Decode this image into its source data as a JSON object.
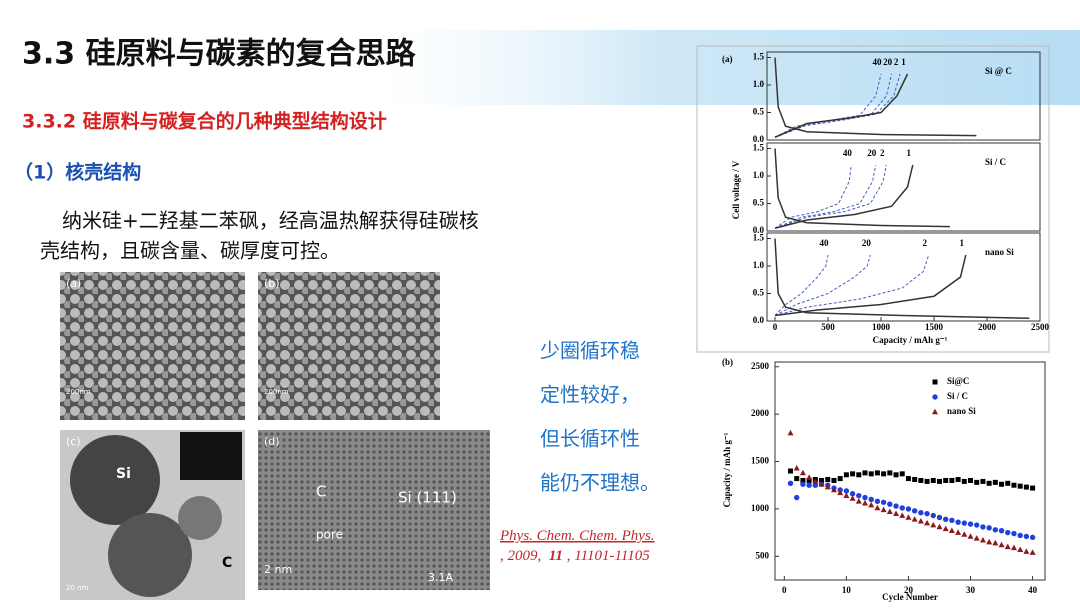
{
  "header": {
    "title": "3.3 硅原料与碳素的复合思路",
    "subtitle": "3.3.2 硅原料与碳复合的几种典型结构设计",
    "section": "（1）核壳结构"
  },
  "paragraph": [
    "纳米硅+二羟基二苯砜，经高温热解获得硅碳核",
    "壳结构，且碳含量、碳厚度可控。"
  ],
  "images": [
    {
      "label": "(a)",
      "scale": "200nm"
    },
    {
      "label": "(b)",
      "scale": "200nm"
    },
    {
      "label": "(c)",
      "core": "Si",
      "shell": "C",
      "scale": "20 nm"
    },
    {
      "label": "(d)",
      "shell": "C",
      "pore": "pore",
      "plane": "Si (111)",
      "scale": "2 nm",
      "spacing": "3.1A"
    }
  ],
  "note": [
    "少圈循环稳",
    "定性较好，",
    "但长循环性",
    "能仍不理想。"
  ],
  "citation": {
    "journal": "Phys. Chem. Chem. Phys.",
    "year": ", 2009, ",
    "volume": "11",
    "pages": ", 11101-11105"
  },
  "chart_data": [
    {
      "type": "line",
      "label": "(a)",
      "ylabel": "Cell voltage / V",
      "xlabel": "Capacity / mAh g⁻¹",
      "xlim": [
        0,
        2500
      ],
      "xticks": [
        0,
        500,
        1000,
        1500,
        2000,
        2500
      ],
      "ylim": [
        0,
        1.6
      ],
      "yticks": [
        {
          "value": 0,
          "label": "0.0"
        },
        0.5,
        {
          "value": 1,
          "label": "1.0"
        },
        1.5
      ],
      "panels": [
        {
          "name": "Si @ C",
          "series": [
            {
              "name": "40",
              "color": "#4a5fc1",
              "dashed": true,
              "x": [
                0,
                200,
                500,
                800,
                950,
                1000
              ],
              "y": [
                0.05,
                0.25,
                0.35,
                0.45,
                0.8,
                1.2
              ]
            },
            {
              "name": "20",
              "color": "#4a5fc1",
              "dashed": true,
              "x": [
                0,
                250,
                600,
                900,
                1050,
                1100
              ],
              "y": [
                0.05,
                0.25,
                0.35,
                0.45,
                0.8,
                1.2
              ]
            },
            {
              "name": "2",
              "color": "#4a5fc1",
              "dashed": true,
              "x": [
                0,
                300,
                650,
                950,
                1120,
                1180
              ],
              "y": [
                0.05,
                0.27,
                0.37,
                0.47,
                0.8,
                1.2
              ]
            },
            {
              "name": "1",
              "color": "#333333",
              "dashed": false,
              "x": [
                0,
                300,
                700,
                1000,
                1150,
                1250
              ],
              "y": [
                0.05,
                0.3,
                0.4,
                0.5,
                0.8,
                1.2
              ]
            },
            {
              "color": "#333333",
              "dashed": false,
              "x": [
                0,
                30,
                100,
                300,
                1000,
                1900
              ],
              "y": [
                1.5,
                0.6,
                0.25,
                0.15,
                0.1,
                0.08
              ]
            }
          ]
        },
        {
          "name": "Si / C",
          "series": [
            {
              "name": "40",
              "color": "#4a5fc1",
              "dashed": true,
              "x": [
                0,
                150,
                400,
                600,
                700,
                720
              ],
              "y": [
                0.05,
                0.25,
                0.35,
                0.5,
                0.9,
                1.2
              ]
            },
            {
              "name": "20",
              "color": "#4a5fc1",
              "dashed": true,
              "x": [
                0,
                250,
                550,
                800,
                920,
                950
              ],
              "y": [
                0.05,
                0.25,
                0.35,
                0.5,
                0.9,
                1.2
              ]
            },
            {
              "name": "2",
              "color": "#4a5fc1",
              "dashed": true,
              "x": [
                0,
                300,
                650,
                900,
                1020,
                1050
              ],
              "y": [
                0.05,
                0.25,
                0.35,
                0.5,
                0.9,
                1.2
              ]
            },
            {
              "name": "1",
              "color": "#333333",
              "dashed": false,
              "x": [
                0,
                300,
                750,
                1100,
                1250,
                1300
              ],
              "y": [
                0.05,
                0.2,
                0.3,
                0.45,
                0.8,
                1.2
              ]
            },
            {
              "color": "#333333",
              "dashed": false,
              "x": [
                0,
                30,
                100,
                300,
                1000,
                1650
              ],
              "y": [
                1.5,
                0.6,
                0.25,
                0.15,
                0.1,
                0.08
              ]
            }
          ]
        },
        {
          "name": "nano Si",
          "series": [
            {
              "name": "40",
              "color": "#4a5fc1",
              "dashed": true,
              "x": [
                0,
                100,
                250,
                400,
                480,
                500
              ],
              "y": [
                0.1,
                0.3,
                0.5,
                0.8,
                1.0,
                1.2
              ]
            },
            {
              "name": "20",
              "color": "#4a5fc1",
              "dashed": true,
              "x": [
                0,
                200,
                500,
                750,
                870,
                900
              ],
              "y": [
                0.1,
                0.3,
                0.5,
                0.8,
                1.0,
                1.2
              ]
            },
            {
              "name": "2",
              "color": "#4a5fc1",
              "dashed": true,
              "x": [
                0,
                300,
                800,
                1200,
                1400,
                1450
              ],
              "y": [
                0.1,
                0.25,
                0.4,
                0.6,
                0.9,
                1.2
              ]
            },
            {
              "name": "1",
              "color": "#333333",
              "dashed": false,
              "x": [
                0,
                400,
                1000,
                1500,
                1750,
                1800
              ],
              "y": [
                0.1,
                0.2,
                0.3,
                0.45,
                0.8,
                1.2
              ]
            },
            {
              "color": "#333333",
              "dashed": false,
              "x": [
                0,
                30,
                100,
                300,
                1200,
                2400
              ],
              "y": [
                1.5,
                0.5,
                0.25,
                0.15,
                0.1,
                0.05
              ]
            }
          ]
        }
      ]
    },
    {
      "type": "scatter",
      "label": "(b)",
      "ylabel": "Capacity / mAh g⁻¹",
      "xlabel": "Cycle Number",
      "xlim": [
        -1.5,
        42
      ],
      "xticks": [
        0,
        10,
        20,
        30,
        40
      ],
      "ylim": [
        250,
        2550
      ],
      "yticks": [
        500,
        1000,
        1500,
        2000,
        2500
      ],
      "legend": "upper right",
      "x": [
        1,
        2,
        3,
        4,
        5,
        6,
        7,
        8,
        9,
        10,
        11,
        12,
        13,
        14,
        15,
        16,
        17,
        18,
        19,
        20,
        21,
        22,
        23,
        24,
        25,
        26,
        27,
        28,
        29,
        30,
        31,
        32,
        33,
        34,
        35,
        36,
        37,
        38,
        39,
        40
      ],
      "series": [
        {
          "name": "Si@C",
          "color": "#000000",
          "marker": "square",
          "values": [
            1400,
            1320,
            1300,
            1300,
            1310,
            1300,
            1310,
            1300,
            1320,
            1360,
            1370,
            1360,
            1380,
            1370,
            1380,
            1370,
            1380,
            1360,
            1370,
            1320,
            1310,
            1300,
            1290,
            1300,
            1290,
            1300,
            1300,
            1310,
            1290,
            1300,
            1280,
            1290,
            1270,
            1280,
            1260,
            1270,
            1250,
            1240,
            1230,
            1220
          ]
        },
        {
          "name": "Si / C",
          "color": "#1f3fe0",
          "marker": "circle",
          "values": [
            1270,
            1120,
            1260,
            1250,
            1250,
            1260,
            1250,
            1220,
            1200,
            1190,
            1160,
            1140,
            1120,
            1100,
            1080,
            1070,
            1050,
            1030,
            1010,
            1000,
            980,
            960,
            950,
            930,
            910,
            890,
            880,
            860,
            850,
            840,
            830,
            810,
            800,
            780,
            770,
            750,
            740,
            720,
            710,
            700
          ]
        },
        {
          "name": "nano Si",
          "color": "#8b1a1a",
          "marker": "triangle",
          "values": [
            1800,
            1430,
            1380,
            1330,
            1290,
            1260,
            1230,
            1200,
            1170,
            1140,
            1110,
            1080,
            1060,
            1040,
            1010,
            990,
            970,
            950,
            930,
            910,
            890,
            870,
            850,
            830,
            810,
            790,
            770,
            750,
            730,
            710,
            690,
            670,
            650,
            640,
            620,
            600,
            590,
            570,
            550,
            540
          ]
        }
      ]
    }
  ]
}
